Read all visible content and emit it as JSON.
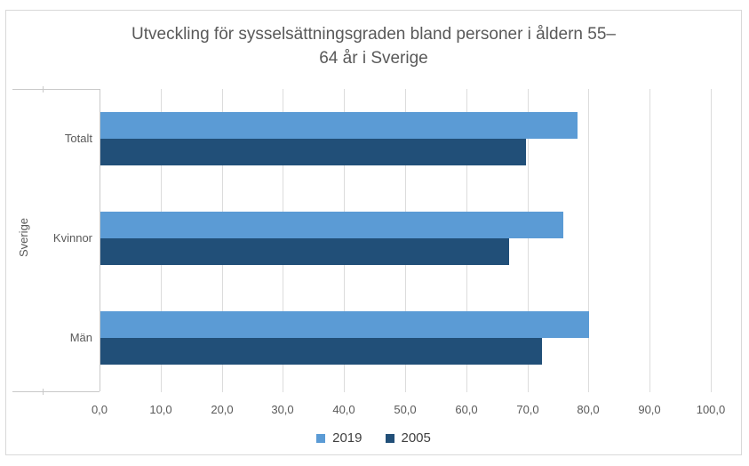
{
  "chart_data": {
    "type": "bar",
    "orientation": "horizontal",
    "title": "Utveckling för sysselsättningsgraden bland personer i åldern 55–64 år i Sverige",
    "title_lines": [
      "Utveckling för sysselsättningsgraden bland personer i åldern 55–",
      "64 år i Sverige"
    ],
    "group_label": "Sverige",
    "categories": [
      "Totalt",
      "Kvinnor",
      "Män"
    ],
    "series": [
      {
        "name": "2019",
        "color": "#5B9BD5",
        "values": [
          78.0,
          75.7,
          80.0
        ]
      },
      {
        "name": "2005",
        "color": "#214F78",
        "values": [
          69.6,
          66.8,
          72.3
        ]
      }
    ],
    "xlim": [
      0,
      100
    ],
    "x_tick_step": 10,
    "x_tick_labels": [
      "0,0",
      "10,0",
      "20,0",
      "30,0",
      "40,0",
      "50,0",
      "60,0",
      "70,0",
      "80,0",
      "90,0",
      "100,0"
    ],
    "grid": true,
    "legend_position": "bottom",
    "colors": {
      "background": "#FFFFFF",
      "frame": "#D9D9D9",
      "grid": "#DCDCDC",
      "axis": "#C9C9C9",
      "text": "#595959",
      "legend_text": "#404040"
    }
  }
}
